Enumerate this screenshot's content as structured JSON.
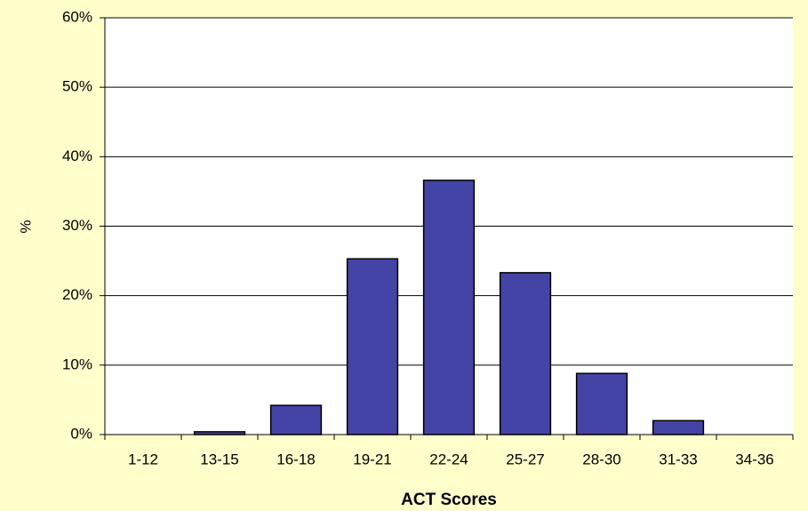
{
  "chart_data": {
    "type": "bar",
    "x_label": "ACT Scores",
    "y_label": "%",
    "categories": [
      "1-12",
      "13-15",
      "16-18",
      "19-21",
      "22-24",
      "25-27",
      "28-30",
      "31-33",
      "34-36"
    ],
    "values": [
      0,
      0.4,
      4.2,
      25.3,
      36.6,
      23.3,
      8.8,
      2.0,
      0
    ],
    "color": "#4444a6",
    "ylim": [
      0,
      60
    ],
    "yticks": [
      {
        "value": 0,
        "label": "0%"
      },
      {
        "value": 10,
        "label": "10%"
      },
      {
        "value": 20,
        "label": "20%"
      },
      {
        "value": 30,
        "label": "30%"
      },
      {
        "value": 40,
        "label": "40%"
      },
      {
        "value": 50,
        "label": "50%"
      },
      {
        "value": 60,
        "label": "60%"
      }
    ],
    "grid": true
  }
}
